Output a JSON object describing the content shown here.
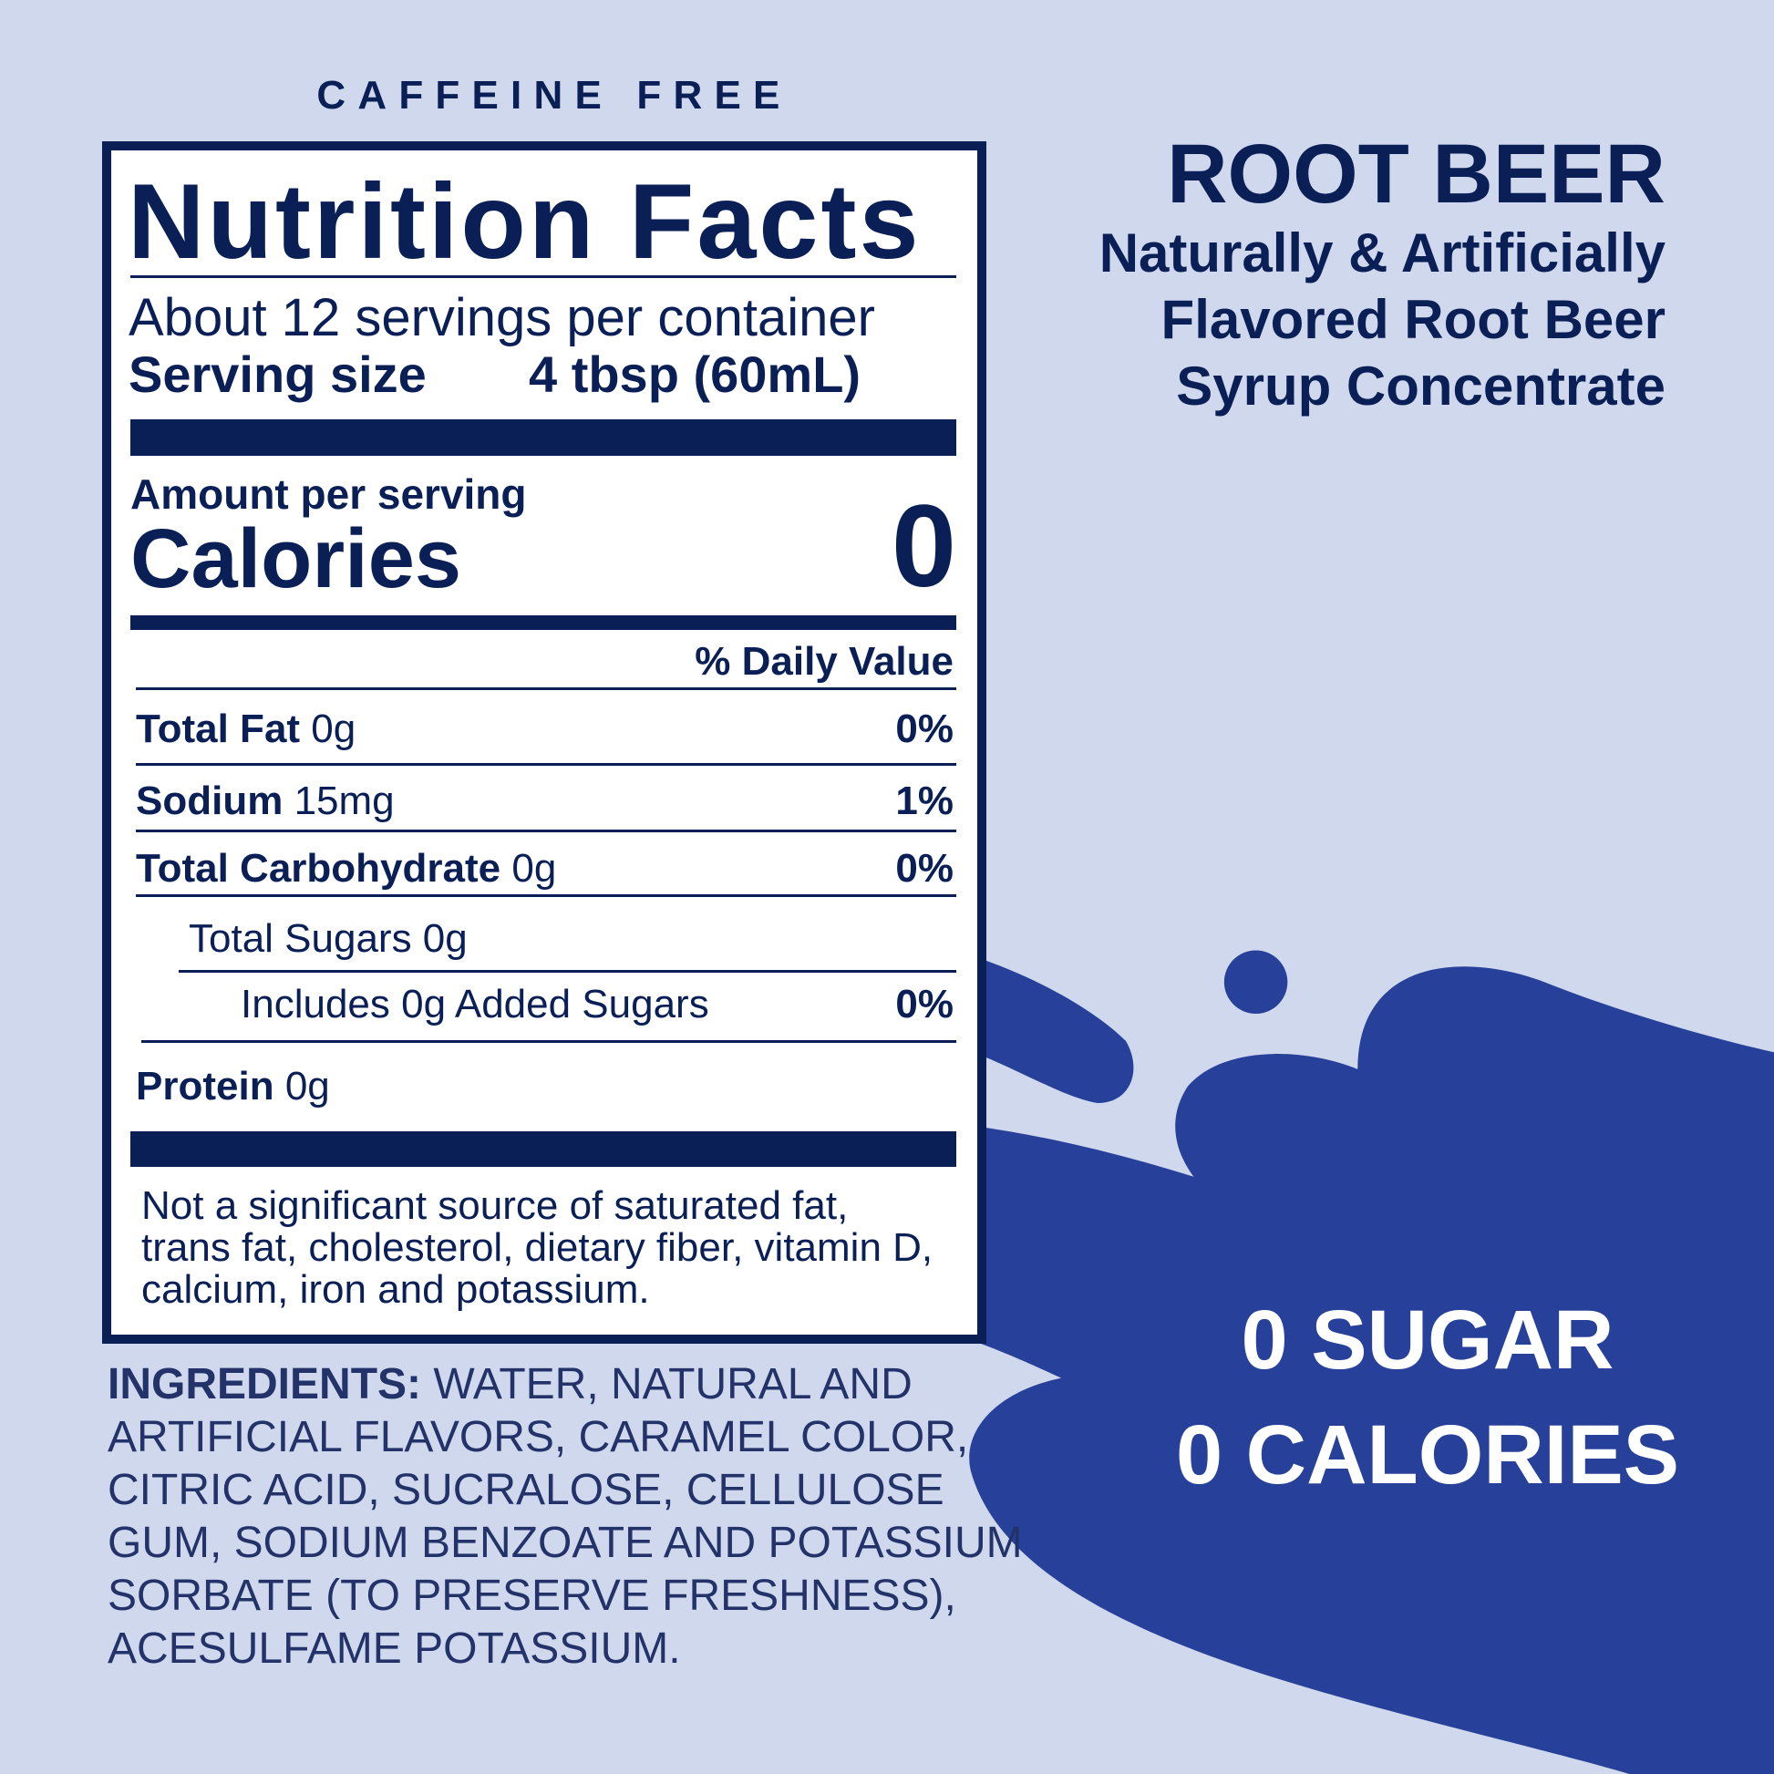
{
  "colors": {
    "background": "#cfd8ec",
    "navy": "#0b1f57",
    "splash": "#27419a",
    "ingredients_text": "#23336a"
  },
  "header": {
    "caffeine_label": "CAFFEINE FREE"
  },
  "nutrition": {
    "title": "Nutrition Facts",
    "servings_per_container": "About 12 servings per container",
    "serving_size_label": "Serving size",
    "serving_size_value": "4 tbsp (60mL)",
    "amount_per_serving": "Amount per serving",
    "calories_label": "Calories",
    "calories_value": "0",
    "daily_value_header": "% Daily Value",
    "rows": [
      {
        "name": "Total Fat",
        "amount": "0g",
        "dv": "0%"
      },
      {
        "name": "Sodium",
        "amount": "15mg",
        "dv": "1%"
      },
      {
        "name": "Total Carbohydrate",
        "amount": "0g",
        "dv": "0%"
      },
      {
        "name": "Total Sugars 0g",
        "amount": "",
        "dv": ""
      },
      {
        "name": "Includes 0g Added Sugars",
        "amount": "",
        "dv": "0%"
      },
      {
        "name": "Protein",
        "amount": "0g",
        "dv": ""
      }
    ],
    "footnote": [
      "Not a significant source of saturated fat,",
      "trans fat, cholesterol, dietary fiber, vitamin D,",
      "calcium, iron and potassium."
    ]
  },
  "ingredients": {
    "label": "INGREDIENTS:",
    "lines": [
      " WATER, NATURAL AND",
      "ARTIFICIAL FLAVORS, CARAMEL COLOR,",
      "CITRIC ACID, SUCRALOSE, CELLULOSE",
      "GUM, SODIUM BENZOATE AND POTASSIUM",
      "SORBATE (TO PRESERVE FRESHNESS),",
      "ACESULFAME POTASSIUM."
    ]
  },
  "product": {
    "name": "ROOT BEER",
    "description": [
      "Naturally & Artificially",
      "Flavored Root Beer",
      "Syrup Concentrate"
    ]
  },
  "claims": [
    "0 SUGAR",
    "0 CALORIES"
  ]
}
